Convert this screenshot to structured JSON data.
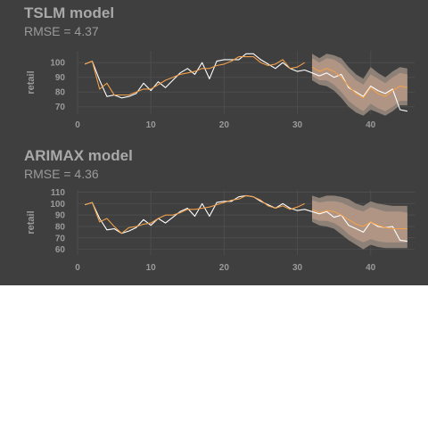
{
  "chart_data": [
    {
      "type": "line",
      "title": "TSLM model",
      "subtitle": "RMSE = 4.37",
      "xlabel": "",
      "ylabel": "retail",
      "xlim": [
        0,
        46
      ],
      "ylim": [
        65,
        108
      ],
      "xticks": [
        0,
        10,
        20,
        30,
        40
      ],
      "yticks": [
        70,
        80,
        90,
        100
      ],
      "grid": true,
      "legend": "none",
      "series": [
        {
          "name": "actual",
          "color": "#ffffff",
          "x": [
            1,
            2,
            3,
            4,
            5,
            6,
            7,
            8,
            9,
            10,
            11,
            12,
            13,
            14,
            15,
            16,
            17,
            18,
            19,
            20,
            21,
            22,
            23,
            24,
            25,
            26,
            27,
            28,
            29,
            30,
            31,
            32,
            33,
            34,
            35,
            36,
            37,
            38,
            39,
            40,
            41,
            42,
            43,
            44,
            45
          ],
          "y": [
            99,
            101,
            88,
            77,
            78,
            76,
            77,
            79,
            86,
            81,
            87,
            83,
            88,
            93,
            96,
            92,
            100,
            89,
            101,
            102,
            102,
            102,
            106,
            106,
            102,
            99,
            96,
            100,
            96,
            94,
            95,
            93,
            91,
            93,
            90,
            92,
            83,
            80,
            77,
            84,
            81,
            79,
            82,
            68,
            67
          ]
        },
        {
          "name": "fitted",
          "color": "#f0a04a",
          "x": [
            1,
            2,
            3,
            4,
            5,
            6,
            7,
            8,
            9,
            10,
            11,
            12,
            13,
            14,
            15,
            16,
            17,
            18,
            19,
            20,
            21,
            22,
            23,
            24,
            25,
            26,
            27,
            28,
            29,
            30,
            31
          ],
          "y": [
            99,
            101,
            82,
            86,
            78,
            78,
            78,
            80,
            82,
            82,
            85,
            88,
            90,
            92,
            93,
            94,
            96,
            96,
            98,
            99,
            101,
            104,
            104,
            104,
            100,
            98,
            99,
            102,
            96,
            97,
            100
          ]
        },
        {
          "name": "forecast",
          "color": "#f0a04a",
          "x": [
            32,
            33,
            34,
            35,
            36,
            37,
            38,
            39,
            40,
            41,
            42,
            43,
            44,
            45
          ],
          "y": [
            97,
            94,
            96,
            94,
            90,
            84,
            79,
            76,
            83,
            79,
            77,
            81,
            84,
            83
          ]
        }
      ],
      "interval_80": {
        "x": [
          32,
          33,
          34,
          35,
          36,
          37,
          38,
          39,
          40,
          41,
          42,
          43,
          44,
          45
        ],
        "lower": [
          91,
          88,
          88,
          85,
          80,
          74,
          70,
          67,
          72,
          69,
          67,
          70,
          74,
          74
        ],
        "upper": [
          103,
          100,
          103,
          102,
          99,
          93,
          88,
          85,
          92,
          89,
          86,
          90,
          93,
          92
        ]
      },
      "interval_95": {
        "x": [
          32,
          33,
          34,
          35,
          36,
          37,
          38,
          39,
          40,
          41,
          42,
          43,
          44,
          45
        ],
        "lower": [
          88,
          85,
          84,
          81,
          76,
          70,
          66,
          64,
          68,
          66,
          64,
          67,
          71,
          71
        ],
        "upper": [
          106,
          103,
          106,
          105,
          103,
          97,
          92,
          89,
          97,
          93,
          90,
          94,
          97,
          96
        ]
      }
    },
    {
      "type": "line",
      "title": "ARIMAX model",
      "subtitle": "RMSE = 4.36",
      "xlabel": "",
      "ylabel": "retail",
      "xlim": [
        0,
        46
      ],
      "ylim": [
        55,
        112
      ],
      "xticks": [
        0,
        10,
        20,
        30,
        40
      ],
      "yticks": [
        60,
        70,
        80,
        90,
        100,
        110
      ],
      "grid": true,
      "legend": "none",
      "series": [
        {
          "name": "actual",
          "color": "#ffffff",
          "x": [
            1,
            2,
            3,
            4,
            5,
            6,
            7,
            8,
            9,
            10,
            11,
            12,
            13,
            14,
            15,
            16,
            17,
            18,
            19,
            20,
            21,
            22,
            23,
            24,
            25,
            26,
            27,
            28,
            29,
            30,
            31,
            32,
            33,
            34,
            35,
            36,
            37,
            38,
            39,
            40,
            41,
            42,
            43,
            44,
            45
          ],
          "y": [
            99,
            101,
            87,
            77,
            78,
            74,
            76,
            79,
            86,
            81,
            87,
            83,
            88,
            93,
            96,
            89,
            100,
            89,
            101,
            102,
            102,
            106,
            107,
            106,
            102,
            99,
            96,
            100,
            96,
            94,
            95,
            93,
            91,
            93,
            88,
            90,
            81,
            78,
            75,
            84,
            80,
            79,
            80,
            68,
            67
          ]
        },
        {
          "name": "fitted",
          "color": "#f0a04a",
          "x": [
            1,
            2,
            3,
            4,
            5,
            6,
            7,
            8,
            9,
            10,
            11,
            12,
            13,
            14,
            15,
            16,
            17,
            18,
            19,
            20,
            21,
            22,
            23,
            24,
            25,
            26,
            27,
            28,
            29,
            30,
            31
          ],
          "y": [
            99,
            101,
            84,
            87,
            80,
            74,
            79,
            80,
            82,
            83,
            87,
            90,
            90,
            92,
            95,
            95,
            96,
            97,
            99,
            101,
            103,
            104,
            107,
            106,
            103,
            98,
            96,
            98,
            95,
            97,
            100
          ]
        },
        {
          "name": "forecast",
          "color": "#f0a04a",
          "x": [
            32,
            33,
            34,
            35,
            36,
            37,
            38,
            39,
            40,
            41,
            42,
            43,
            44,
            45
          ],
          "y": [
            95,
            92,
            94,
            93,
            90,
            86,
            82,
            80,
            84,
            81,
            79,
            78,
            78,
            78
          ]
        }
      ],
      "interval_80": {
        "x": [
          32,
          33,
          34,
          35,
          36,
          37,
          38,
          39,
          40,
          41,
          42,
          43,
          44,
          45
        ],
        "lower": [
          87,
          85,
          85,
          83,
          79,
          73,
          69,
          66,
          69,
          67,
          66,
          66,
          66,
          66
        ],
        "upper": [
          103,
          101,
          102,
          102,
          101,
          98,
          95,
          93,
          97,
          95,
          93,
          93,
          93,
          92
        ]
      },
      "interval_95": {
        "x": [
          32,
          33,
          34,
          35,
          36,
          37,
          38,
          39,
          40,
          41,
          42,
          43,
          44,
          45
        ],
        "lower": [
          84,
          81,
          80,
          78,
          73,
          68,
          64,
          60,
          64,
          62,
          61,
          61,
          61,
          61
        ],
        "upper": [
          107,
          105,
          107,
          107,
          106,
          104,
          100,
          98,
          102,
          100,
          99,
          98,
          98,
          98
        ]
      }
    }
  ],
  "colors": {
    "background": "#3f3f3f",
    "grid": "#4d4d4d",
    "text": "#9a9a9a",
    "title": "#a9a9a9",
    "actual": "#ffffff",
    "model": "#f0a04a",
    "band_95": "#8c8077",
    "band_80": "#b09585"
  }
}
